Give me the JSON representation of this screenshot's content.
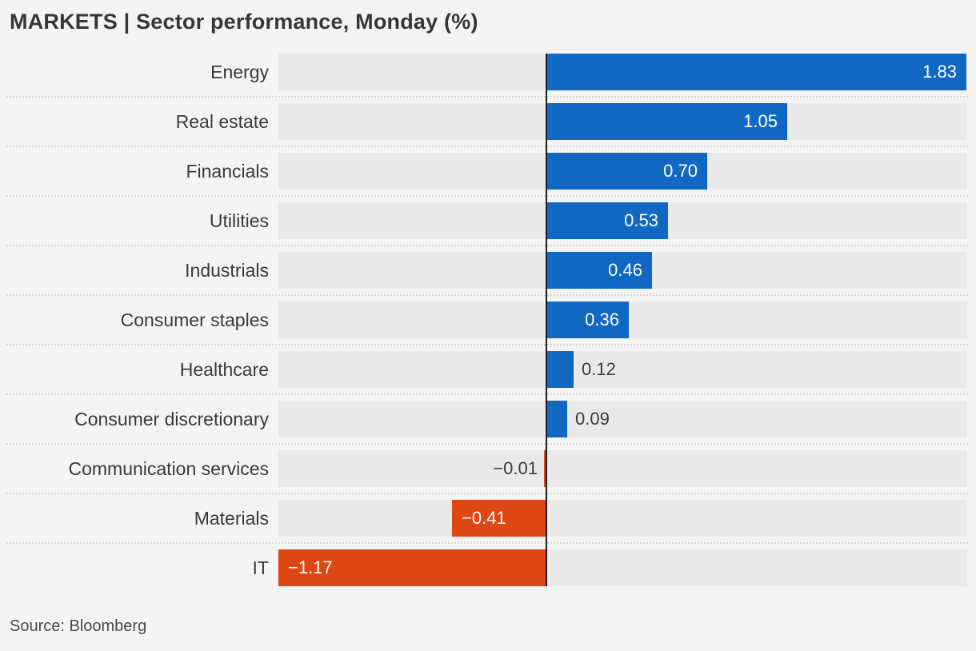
{
  "title": "MARKETS | Sector performance, Monday (%)",
  "source": "Source: Bloomberg",
  "colors": {
    "positive_bar": "#1168c3",
    "negative_bar": "#dd4713",
    "track": "#e9e9e9",
    "background": "#f4f4f5",
    "zero_line": "#1e1e1e",
    "label_text": "#3a3a3a",
    "value_text_inside": "#ffffff",
    "value_text_outside": "#3a3a3a",
    "separator": "#d7d7d7"
  },
  "chart_data": {
    "type": "bar",
    "orientation": "horizontal",
    "title": "MARKETS | Sector performance, Monday (%)",
    "categories": [
      "Energy",
      "Real estate",
      "Financials",
      "Utilities",
      "Industrials",
      "Consumer staples",
      "Healthcare",
      "Consumer discretionary",
      "Communication services",
      "Materials",
      "IT"
    ],
    "values": [
      1.83,
      1.05,
      0.7,
      0.53,
      0.46,
      0.36,
      0.12,
      0.09,
      -0.01,
      -0.41,
      -1.17
    ],
    "value_labels": [
      "1.83",
      "1.05",
      "0.70",
      "0.53",
      "0.46",
      "0.36",
      "0.12",
      "0.09",
      "−0.01",
      "−0.41",
      "−1.17"
    ],
    "xlabel": "",
    "ylabel": "",
    "xlim": [
      -1.17,
      1.83
    ],
    "grid": false,
    "zero_line": true,
    "legend": "none",
    "source": "Source: Bloomberg"
  }
}
